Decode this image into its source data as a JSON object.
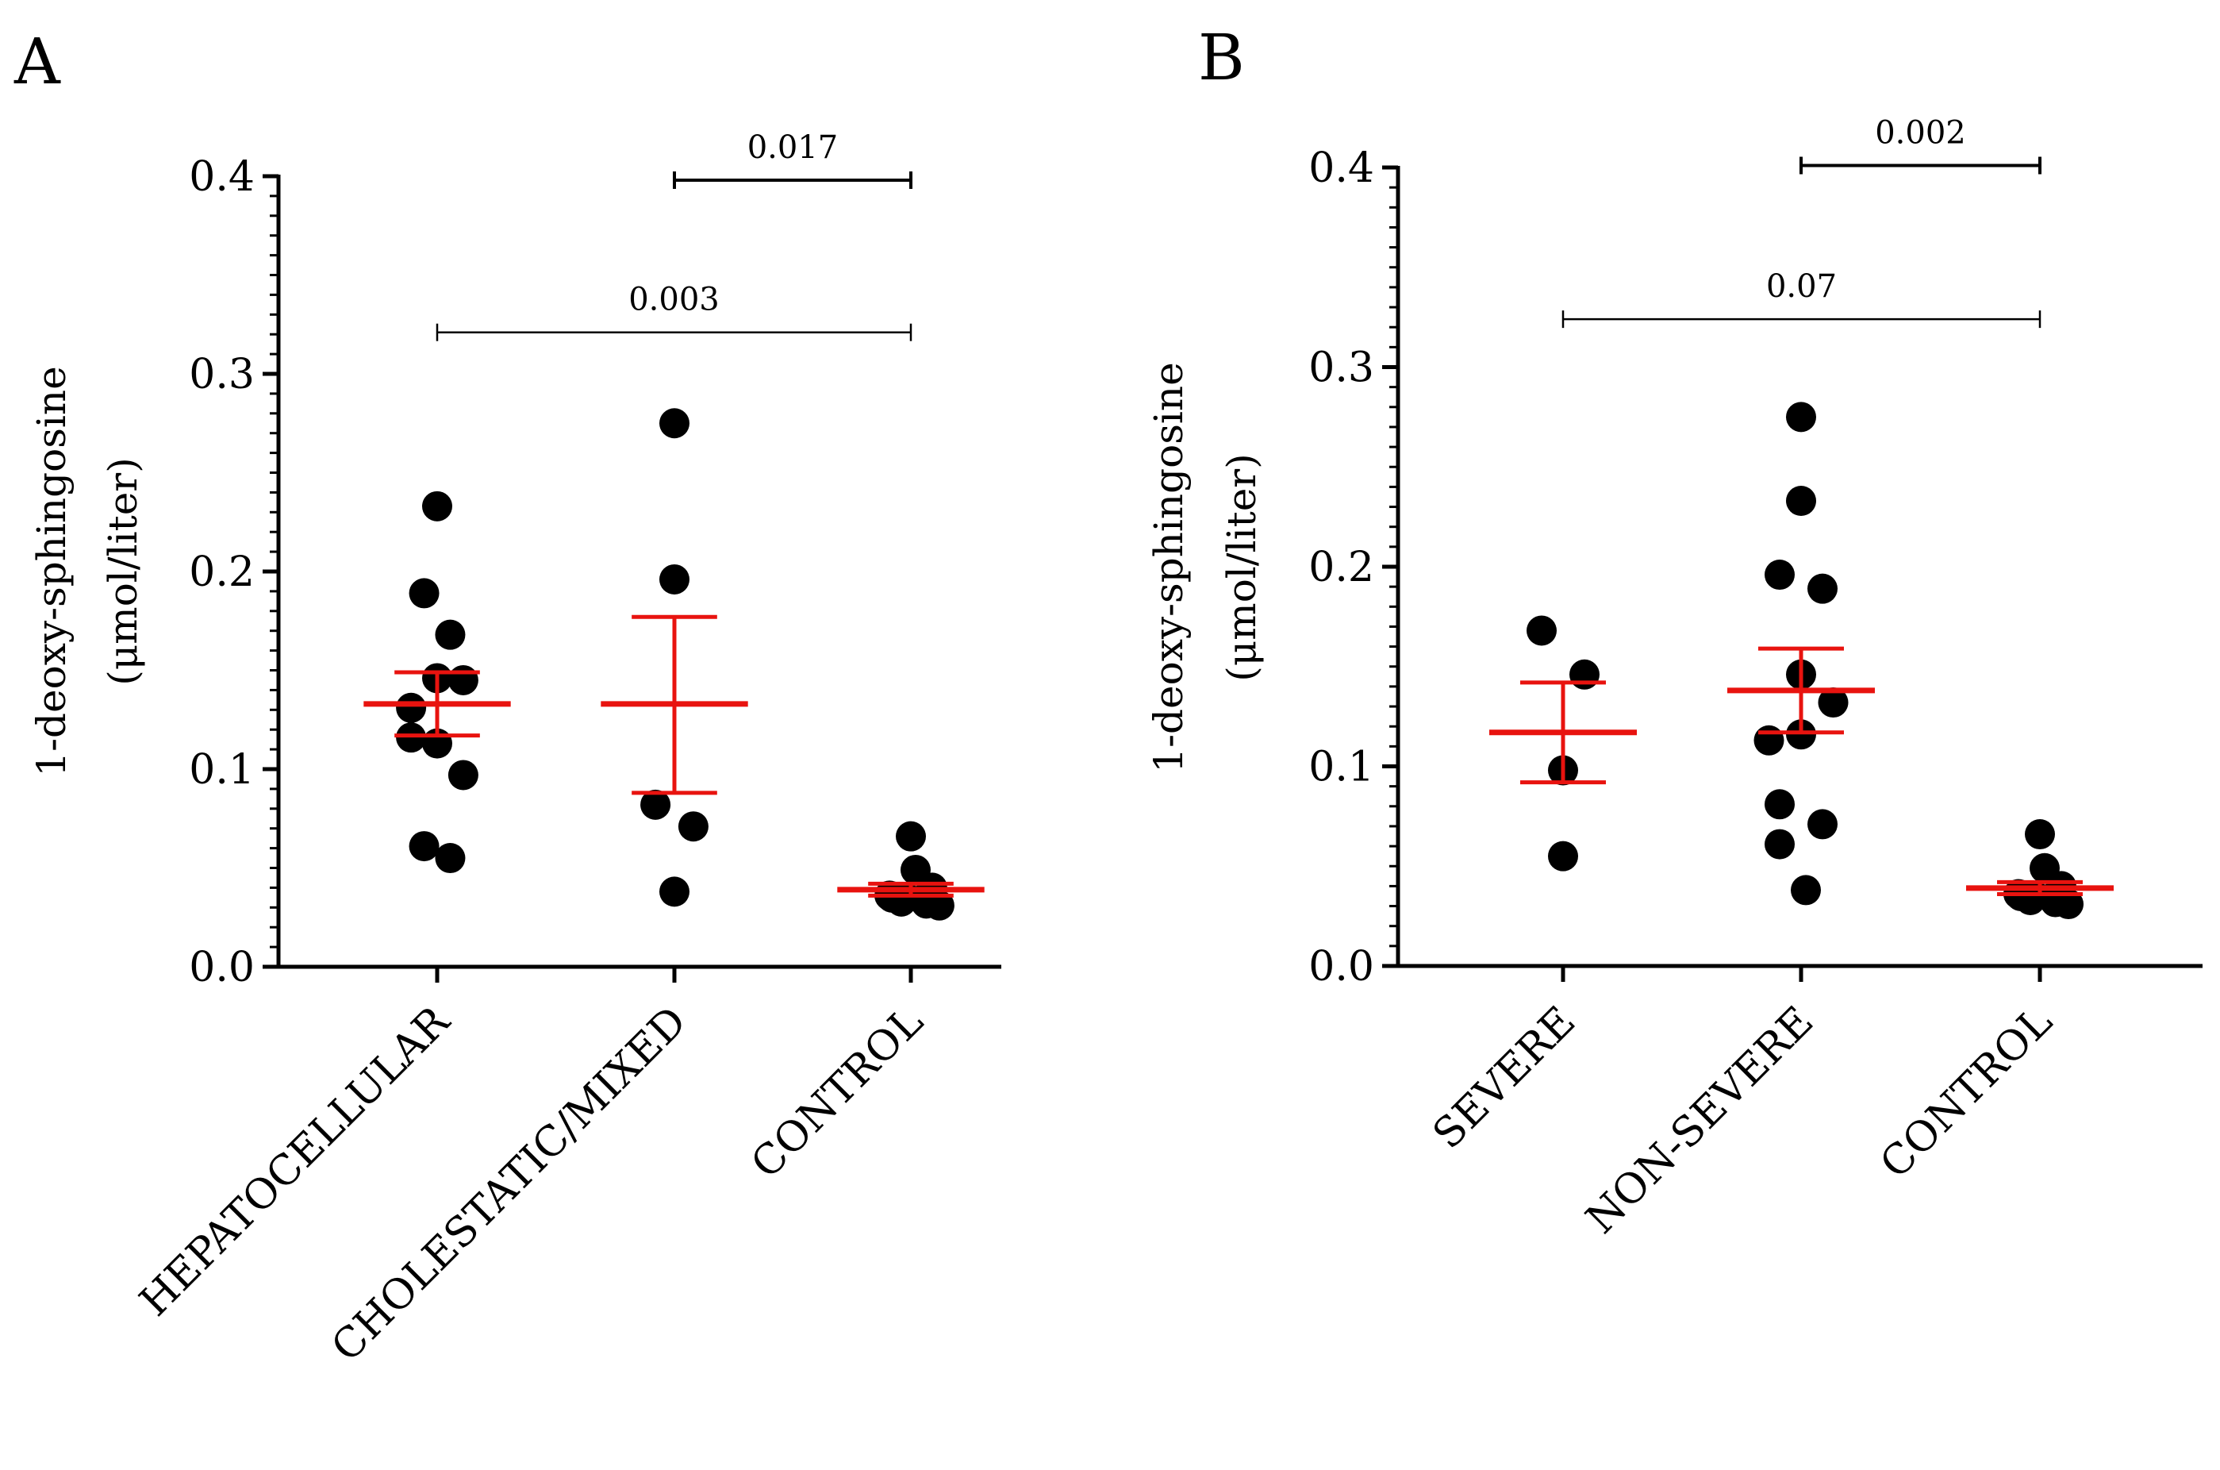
{
  "chart_data": [
    {
      "type": "scatter",
      "panel_label": "A",
      "title": "",
      "xlabel": "",
      "ylabel": "1-deoxy-sphingosine",
      "ylabel_unit": "(μmol/liter)",
      "ylim": [
        0.0,
        0.4
      ],
      "yticks": [
        "0.0",
        "0.1",
        "0.2",
        "0.3",
        "0.4"
      ],
      "categories": [
        "HEPATOCELLULAR",
        "CHOLESTATIC/MIXED",
        "CONTROL"
      ],
      "groups": [
        {
          "category": "HEPATOCELLULAR",
          "points": [
            {
              "x": 0.0,
              "y": 0.233
            },
            {
              "x": -0.11,
              "y": 0.189
            },
            {
              "x": 0.11,
              "y": 0.168
            },
            {
              "x": 0.0,
              "y": 0.146
            },
            {
              "x": 0.22,
              "y": 0.145
            },
            {
              "x": -0.22,
              "y": 0.131
            },
            {
              "x": -0.22,
              "y": 0.116
            },
            {
              "x": 0.0,
              "y": 0.113
            },
            {
              "x": 0.22,
              "y": 0.097
            },
            {
              "x": -0.11,
              "y": 0.061
            },
            {
              "x": 0.11,
              "y": 0.055
            }
          ],
          "mean": 0.133,
          "sem_low": 0.117,
          "sem_high": 0.149
        },
        {
          "category": "CHOLESTATIC/MIXED",
          "points": [
            {
              "x": 0.0,
              "y": 0.275
            },
            {
              "x": 0.0,
              "y": 0.196
            },
            {
              "x": -0.16,
              "y": 0.082
            },
            {
              "x": 0.16,
              "y": 0.071
            },
            {
              "x": 0.0,
              "y": 0.038
            }
          ],
          "mean": 0.133,
          "sem_low": 0.088,
          "sem_high": 0.177
        },
        {
          "category": "CONTROL",
          "points": [
            {
              "x": 0.0,
              "y": 0.066
            },
            {
              "x": 0.04,
              "y": 0.049
            },
            {
              "x": 0.18,
              "y": 0.04
            },
            {
              "x": -0.16,
              "y": 0.035
            },
            {
              "x": -0.08,
              "y": 0.033
            },
            {
              "x": 0.1,
              "y": 0.034
            },
            {
              "x": -0.18,
              "y": 0.036
            },
            {
              "x": -0.04,
              "y": 0.035
            },
            {
              "x": 0.24,
              "y": 0.031
            },
            {
              "x": 0.13,
              "y": 0.032
            }
          ],
          "mean": 0.039,
          "sem_low": 0.036,
          "sem_high": 0.042
        }
      ],
      "brackets": [
        {
          "label": "0.017",
          "from": 1,
          "to": 2,
          "y": 0.398
        },
        {
          "label": "0.003",
          "from": 0,
          "to": 2,
          "y": 0.321
        }
      ]
    },
    {
      "type": "scatter",
      "panel_label": "B",
      "title": "",
      "xlabel": "",
      "ylabel": "1-deoxy-sphingosine",
      "ylabel_unit": "(μmol/liter)",
      "ylim": [
        0.0,
        0.4
      ],
      "yticks": [
        "0.0",
        "0.1",
        "0.2",
        "0.3",
        "0.4"
      ],
      "categories": [
        "SEVERE",
        "NON-SEVERE",
        "CONTROL"
      ],
      "groups": [
        {
          "category": "SEVERE",
          "points": [
            {
              "x": -0.18,
              "y": 0.168
            },
            {
              "x": 0.18,
              "y": 0.146
            },
            {
              "x": 0.0,
              "y": 0.098
            },
            {
              "x": 0.0,
              "y": 0.055
            }
          ],
          "mean": 0.117,
          "sem_low": 0.092,
          "sem_high": 0.142
        },
        {
          "category": "NON-SEVERE",
          "points": [
            {
              "x": 0.0,
              "y": 0.275
            },
            {
              "x": 0.0,
              "y": 0.233
            },
            {
              "x": -0.18,
              "y": 0.196
            },
            {
              "x": 0.18,
              "y": 0.189
            },
            {
              "x": 0.0,
              "y": 0.146
            },
            {
              "x": 0.27,
              "y": 0.132
            },
            {
              "x": 0.0,
              "y": 0.116
            },
            {
              "x": -0.27,
              "y": 0.113
            },
            {
              "x": -0.18,
              "y": 0.081
            },
            {
              "x": 0.18,
              "y": 0.071
            },
            {
              "x": -0.18,
              "y": 0.061
            },
            {
              "x": 0.04,
              "y": 0.038
            }
          ],
          "mean": 0.138,
          "sem_low": 0.117,
          "sem_high": 0.159
        },
        {
          "category": "CONTROL",
          "points": [
            {
              "x": 0.0,
              "y": 0.066
            },
            {
              "x": 0.04,
              "y": 0.049
            },
            {
              "x": 0.18,
              "y": 0.04
            },
            {
              "x": -0.16,
              "y": 0.035
            },
            {
              "x": -0.08,
              "y": 0.033
            },
            {
              "x": 0.1,
              "y": 0.034
            },
            {
              "x": -0.18,
              "y": 0.036
            },
            {
              "x": -0.04,
              "y": 0.035
            },
            {
              "x": 0.24,
              "y": 0.031
            },
            {
              "x": 0.13,
              "y": 0.032
            }
          ],
          "mean": 0.039,
          "sem_low": 0.036,
          "sem_high": 0.042
        }
      ],
      "brackets": [
        {
          "label": "0.002",
          "from": 1,
          "to": 2,
          "y": 0.401
        },
        {
          "label": "0.07",
          "from": 0,
          "to": 2,
          "y": 0.324
        }
      ]
    }
  ]
}
